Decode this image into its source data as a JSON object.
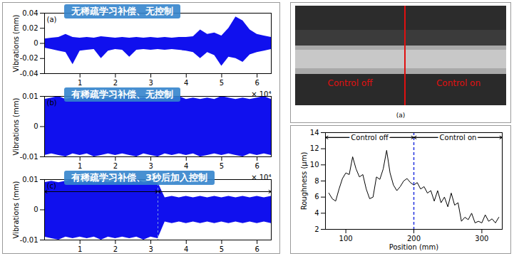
{
  "chart_data": [
    {
      "type": "area",
      "title": "无稀疏学习补偿、无控制",
      "panel_label": "(a)",
      "y_label": "Vibrations (mm)",
      "color": "#1010ee",
      "xlim": [
        0,
        6.4
      ],
      "xticks": [
        1,
        2,
        3,
        4,
        5,
        6
      ],
      "ylim": [
        -0.04,
        0.04
      ],
      "yticks": [
        -0.04,
        -0.02,
        0,
        0.02,
        0.04
      ],
      "x": [
        0,
        0.2,
        0.4,
        0.6,
        0.8,
        1,
        1.2,
        1.4,
        1.6,
        1.8,
        2,
        2.2,
        2.4,
        2.6,
        2.8,
        3,
        3.2,
        3.4,
        3.6,
        3.8,
        4,
        4.2,
        4.4,
        4.6,
        4.8,
        5,
        5.2,
        5.4,
        5.6,
        5.8,
        6,
        6.2,
        6.4
      ],
      "upper": [
        0.006,
        0.007,
        0.008,
        0.012,
        0.008,
        0.007,
        0.008,
        0.007,
        0.009,
        0.008,
        0.007,
        0.008,
        0.007,
        0.008,
        0.007,
        0.008,
        0.007,
        0.008,
        0.007,
        0.008,
        0.008,
        0.009,
        0.018,
        0.012,
        0.014,
        0.01,
        0.02,
        0.035,
        0.03,
        0.018,
        0.012,
        0.01,
        0.008
      ],
      "lower": [
        -0.006,
        -0.008,
        -0.01,
        -0.012,
        -0.028,
        -0.01,
        -0.009,
        -0.008,
        -0.02,
        -0.01,
        -0.008,
        -0.009,
        -0.018,
        -0.009,
        -0.008,
        -0.009,
        -0.008,
        -0.009,
        -0.008,
        -0.009,
        -0.01,
        -0.012,
        -0.02,
        -0.012,
        -0.016,
        -0.03,
        -0.018,
        -0.02,
        -0.025,
        -0.015,
        -0.012,
        -0.01,
        -0.008
      ]
    },
    {
      "type": "area",
      "title": "有稀疏学习补偿、无控制",
      "panel_label": "(b)",
      "y_label": "Vibrations (mm)",
      "x_multiplier": "× 10⁴",
      "color": "#1010ee",
      "xlim": [
        0,
        6.4
      ],
      "xticks": [
        1,
        2,
        3,
        4,
        5,
        6
      ],
      "ylim": [
        -0.01,
        0.01
      ],
      "yticks": [
        -0.01,
        0,
        0.01
      ],
      "x": [
        0,
        0.2,
        0.4,
        0.6,
        0.8,
        1,
        1.2,
        1.4,
        1.6,
        1.8,
        2,
        2.2,
        2.4,
        2.6,
        2.8,
        3,
        3.2,
        3.4,
        3.6,
        3.8,
        4,
        4.2,
        4.4,
        4.6,
        4.8,
        5,
        5.2,
        5.4,
        5.6,
        5.8,
        6,
        6.2,
        6.4
      ],
      "upper": [
        0.009,
        0.0095,
        0.01,
        0.009,
        0.0095,
        0.009,
        0.01,
        0.0095,
        0.009,
        0.0095,
        0.009,
        0.0095,
        0.01,
        0.009,
        0.0095,
        0.009,
        0.0095,
        0.009,
        0.0095,
        0.01,
        0.009,
        0.0095,
        0.009,
        0.0095,
        0.009,
        0.01,
        0.0095,
        0.009,
        0.0095,
        0.009,
        0.0095,
        0.01,
        0.009
      ],
      "lower": [
        -0.0095,
        -0.009,
        -0.0095,
        -0.01,
        -0.009,
        -0.0095,
        -0.009,
        -0.01,
        -0.0095,
        -0.009,
        -0.0095,
        -0.009,
        -0.0095,
        -0.01,
        -0.009,
        -0.0095,
        -0.01,
        -0.009,
        -0.0095,
        -0.009,
        -0.0095,
        -0.009,
        -0.01,
        -0.0095,
        -0.009,
        -0.0095,
        -0.009,
        -0.0095,
        -0.01,
        -0.009,
        -0.0095,
        -0.009,
        -0.0095
      ]
    },
    {
      "type": "area",
      "title": "有稀疏学习补偿、3秒后加入控制",
      "panel_label": "(c)",
      "y_label": "Vibrations (mm)",
      "x_multiplier": "× 10⁴",
      "color": "#1010ee",
      "xlim": [
        0,
        6.4
      ],
      "xticks": [
        1,
        2,
        3,
        4,
        5,
        6
      ],
      "ylim": [
        -0.01,
        0.01
      ],
      "yticks": [
        -0.01,
        0,
        0.01
      ],
      "control_on_x": 3.2,
      "x": [
        0,
        0.2,
        0.4,
        0.6,
        0.8,
        1,
        1.2,
        1.4,
        1.6,
        1.8,
        2,
        2.2,
        2.4,
        2.6,
        2.8,
        3,
        3.2,
        3.4,
        3.6,
        3.8,
        4,
        4.2,
        4.4,
        4.6,
        4.8,
        5,
        5.2,
        5.4,
        5.6,
        5.8,
        6,
        6.2,
        6.4
      ],
      "upper": [
        0.009,
        0.0095,
        0.009,
        0.0095,
        0.01,
        0.009,
        0.0095,
        0.009,
        0.0095,
        0.009,
        0.0095,
        0.009,
        0.0095,
        0.01,
        0.009,
        0.0095,
        0.009,
        0.004,
        0.0045,
        0.004,
        0.0045,
        0.004,
        0.0045,
        0.004,
        0.0045,
        0.004,
        0.0045,
        0.004,
        0.0045,
        0.004,
        0.0045,
        0.004,
        0.0045
      ],
      "lower": [
        -0.009,
        -0.0095,
        -0.01,
        -0.009,
        -0.0095,
        -0.009,
        -0.0095,
        -0.009,
        -0.01,
        -0.009,
        -0.0095,
        -0.009,
        -0.0095,
        -0.009,
        -0.01,
        -0.009,
        -0.0095,
        -0.004,
        -0.0045,
        -0.004,
        -0.0045,
        -0.004,
        -0.0045,
        -0.004,
        -0.0045,
        -0.004,
        -0.0045,
        -0.004,
        -0.0045,
        -0.004,
        -0.0045,
        -0.004,
        -0.0045
      ]
    },
    {
      "type": "line",
      "x_label": "Position (mm)",
      "y_label": "Roughness (μm)",
      "color": "#000000",
      "xlim": [
        70,
        330
      ],
      "xticks": [
        100,
        200,
        300
      ],
      "ylim": [
        2,
        14
      ],
      "yticks": [
        2,
        4,
        6,
        8,
        10,
        12,
        14
      ],
      "control_change_x": 200,
      "regions": [
        "Control off",
        "Control on"
      ],
      "x": [
        75,
        80,
        85,
        90,
        95,
        100,
        105,
        110,
        115,
        120,
        125,
        130,
        135,
        140,
        145,
        150,
        155,
        160,
        165,
        170,
        175,
        180,
        185,
        190,
        195,
        200,
        205,
        210,
        215,
        220,
        225,
        230,
        235,
        240,
        245,
        250,
        255,
        260,
        265,
        270,
        275,
        280,
        285,
        290,
        295,
        300,
        305,
        310,
        315,
        320,
        325
      ],
      "values": [
        6.5,
        5.8,
        5.5,
        7,
        8.3,
        9,
        8.8,
        11,
        9.5,
        8.5,
        8.8,
        7,
        5.8,
        6,
        8.5,
        8.2,
        9.5,
        11.8,
        9,
        7.5,
        6.8,
        7.3,
        8,
        8.3,
        7.8,
        7.5,
        7.8,
        7,
        7.3,
        6.5,
        6.8,
        5.5,
        6.8,
        5.3,
        6,
        4.8,
        6.5,
        5,
        5.3,
        3,
        3.5,
        3.2,
        4,
        2.8,
        3,
        2.8,
        3.8,
        3,
        3.3,
        2.8,
        3.5
      ]
    }
  ],
  "photo": {
    "labels": [
      "Control off",
      "Control on"
    ],
    "caption": "(a)"
  }
}
